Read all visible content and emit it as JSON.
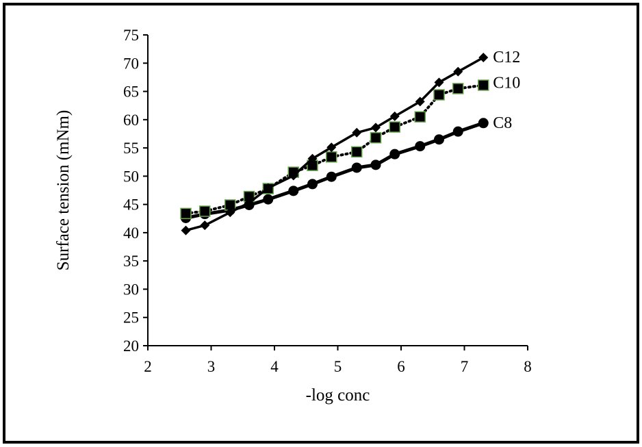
{
  "chart_data": {
    "type": "line",
    "xlabel": "-log conc",
    "ylabel": "Surface tension (mNm)",
    "xlim": [
      2,
      8
    ],
    "ylim": [
      20,
      75
    ],
    "xticks": [
      2,
      3,
      4,
      5,
      6,
      7,
      8
    ],
    "yticks": [
      20,
      25,
      30,
      35,
      40,
      45,
      50,
      55,
      60,
      65,
      70,
      75
    ],
    "grid": false,
    "legend": "none",
    "series": [
      {
        "name": "C12",
        "marker": "diamond",
        "line": "solid",
        "color": "#000000",
        "x": [
          2.6,
          2.9,
          3.3,
          3.6,
          3.9,
          4.3,
          4.6,
          4.9,
          5.3,
          5.6,
          5.9,
          6.3,
          6.6,
          6.9,
          7.3
        ],
        "y": [
          40.4,
          41.3,
          43.6,
          45.3,
          47.9,
          50.1,
          53.1,
          55.1,
          57.7,
          58.6,
          60.6,
          63.2,
          66.6,
          68.5,
          71.0
        ]
      },
      {
        "name": "C10",
        "marker": "square",
        "line": "dotted",
        "color": "#000000",
        "marker_edge_color": "#6aa84f",
        "x": [
          2.6,
          2.9,
          3.3,
          3.6,
          3.9,
          4.3,
          4.6,
          4.9,
          5.3,
          5.6,
          5.9,
          6.3,
          6.6,
          6.9,
          7.3
        ],
        "y": [
          43.4,
          43.8,
          44.9,
          46.4,
          47.8,
          50.7,
          51.9,
          53.4,
          54.3,
          56.8,
          58.7,
          60.5,
          64.4,
          65.5,
          66.1
        ]
      },
      {
        "name": "C8",
        "marker": "circle",
        "line": "solid",
        "color": "#000000",
        "x": [
          2.6,
          2.9,
          3.3,
          3.6,
          3.9,
          4.3,
          4.6,
          4.9,
          5.3,
          5.6,
          5.9,
          6.3,
          6.6,
          6.9,
          7.3
        ],
        "y": [
          42.6,
          43.3,
          44.0,
          44.9,
          45.9,
          47.4,
          48.6,
          49.9,
          51.5,
          52.0,
          53.9,
          55.3,
          56.5,
          57.9,
          59.4
        ]
      }
    ]
  }
}
